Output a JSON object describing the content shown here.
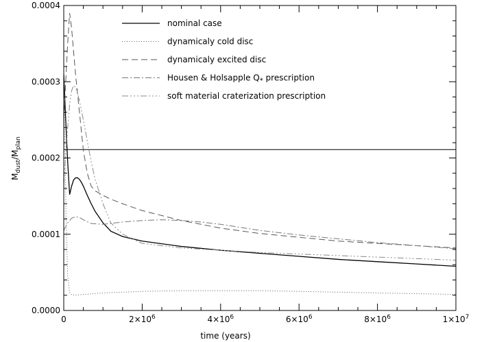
{
  "chart_data": {
    "type": "line",
    "title": "",
    "xlabel": "time (years)",
    "ylabel": {
      "main": "M",
      "sub1": "dust",
      "sep": "/M",
      "sub2": "plan"
    },
    "xlim": [
      0,
      10000000
    ],
    "ylim": [
      0,
      0.0004
    ],
    "x_ticks": [
      {
        "value": 0,
        "label": "0"
      },
      {
        "value": 2000000,
        "base": "2×10",
        "exp": "6"
      },
      {
        "value": 4000000,
        "base": "4×10",
        "exp": "6"
      },
      {
        "value": 6000000,
        "base": "6×10",
        "exp": "6"
      },
      {
        "value": 8000000,
        "base": "8×10",
        "exp": "6"
      },
      {
        "value": 10000000,
        "base": "1×10",
        "exp": "7"
      }
    ],
    "y_ticks": [
      {
        "value": 0,
        "label": "0.0000"
      },
      {
        "value": 0.0001,
        "label": "0.0001"
      },
      {
        "value": 0.0002,
        "label": "0.0002"
      },
      {
        "value": 0.0003,
        "label": "0.0003"
      },
      {
        "value": 0.0004,
        "label": "0.0004"
      }
    ],
    "reference_line": {
      "y": 0.000211,
      "color": "#000000"
    },
    "legend": {
      "position": "top",
      "items": [
        {
          "text": "nominal case",
          "series": 0
        },
        {
          "text": "dynamicaly cold disc",
          "series": 1
        },
        {
          "text": "dynamicaly excited disc",
          "series": 2
        },
        {
          "pre": "Housen & Holsapple Q",
          "sub": "*",
          "post": " prescription",
          "series": 3
        },
        {
          "text": "soft material craterization prescription",
          "series": 4
        }
      ]
    },
    "series": [
      {
        "name": "nominal case",
        "color": "#000000",
        "dash": "",
        "x": [
          0,
          50000,
          100000,
          150000,
          200000,
          250000,
          300000,
          350000,
          400000,
          450000,
          500000,
          600000,
          700000,
          800000,
          1000000,
          1200000,
          1500000,
          2000000,
          3000000,
          4000000,
          5000000,
          6000000,
          7000000,
          8000000,
          9000000,
          10000000
        ],
        "y": [
          0.00031,
          0.00025,
          0.000195,
          0.000152,
          0.000163,
          0.000171,
          0.000174,
          0.000174,
          0.000172,
          0.000168,
          0.000163,
          0.000151,
          0.00014,
          0.00013,
          0.000115,
          0.000104,
          9.7e-05,
          9.1e-05,
          8.4e-05,
          7.9e-05,
          7.5e-05,
          7.1e-05,
          6.7e-05,
          6.4e-05,
          6.1e-05,
          5.8e-05
        ]
      },
      {
        "name": "dynamicaly cold disc",
        "color": "#555555",
        "dash": "1 2.5",
        "x": [
          0,
          30000,
          60000,
          100000,
          150000,
          200000,
          300000,
          500000,
          1000000,
          2000000,
          3000000,
          4000000,
          5000000,
          6000000,
          7000000,
          8000000,
          9000000,
          10000000
        ],
        "y": [
          0.00031,
          0.00022,
          0.00012,
          4.5e-05,
          2.4e-05,
          2.1e-05,
          2e-05,
          2.1e-05,
          2.3e-05,
          2.5e-05,
          2.6e-05,
          2.6e-05,
          2.6e-05,
          2.5e-05,
          2.4e-05,
          2.3e-05,
          2.2e-05,
          2.1e-05
        ]
      },
      {
        "name": "dynamicaly excited disc",
        "color": "#555555",
        "dash": "9 5",
        "x": [
          0,
          50000,
          100000,
          150000,
          200000,
          300000,
          400000,
          500000,
          600000,
          700000,
          800000,
          1000000,
          1200000,
          1500000,
          2000000,
          3000000,
          4000000,
          5000000,
          6000000,
          7000000,
          8000000,
          9000000,
          10000000
        ],
        "y": [
          0.00025,
          0.0003,
          0.00035,
          0.00039,
          0.00037,
          0.00031,
          0.00026,
          0.00021,
          0.00018,
          0.000163,
          0.000157,
          0.000151,
          0.000146,
          0.00014,
          0.000131,
          0.000118,
          0.000108,
          0.000101,
          9.6e-05,
          9.1e-05,
          8.8e-05,
          8.5e-05,
          8.2e-05
        ]
      },
      {
        "name": "Housen & Holsapple Q* prescription",
        "color": "#777777",
        "dash": "9 3 2 3",
        "x": [
          0,
          100000,
          200000,
          300000,
          400000,
          500000,
          700000,
          1000000,
          1500000,
          2000000,
          2500000,
          3000000,
          3500000,
          4000000,
          5000000,
          6000000,
          7000000,
          8000000,
          9000000,
          10000000
        ],
        "y": [
          0.000105,
          0.000115,
          0.000121,
          0.000123,
          0.000122,
          0.000119,
          0.000114,
          0.000113,
          0.000116,
          0.000118,
          0.000119,
          0.000118,
          0.000116,
          0.000113,
          0.000105,
          9.9e-05,
          9.4e-05,
          8.9e-05,
          8.5e-05,
          8.1e-05
        ]
      },
      {
        "name": "soft material craterization prescription",
        "color": "#888888",
        "dash": "9 3 2 3 2 3 2 3",
        "x": [
          0,
          50000,
          100000,
          150000,
          200000,
          250000,
          300000,
          350000,
          400000,
          500000,
          600000,
          700000,
          800000,
          1000000,
          1200000,
          1500000,
          2000000,
          3000000,
          4000000,
          5000000,
          6000000,
          7000000,
          8000000,
          9000000,
          10000000
        ],
        "y": [
          0.000165,
          0.000205,
          0.00024,
          0.00027,
          0.000288,
          0.000295,
          0.000293,
          0.000285,
          0.000275,
          0.00025,
          0.000222,
          0.000195,
          0.000172,
          0.00014,
          0.000115,
          0.0001,
          8.8e-05,
          8.2e-05,
          7.9e-05,
          7.6e-05,
          7.4e-05,
          7.2e-05,
          7e-05,
          6.8e-05,
          6.6e-05
        ]
      }
    ]
  }
}
